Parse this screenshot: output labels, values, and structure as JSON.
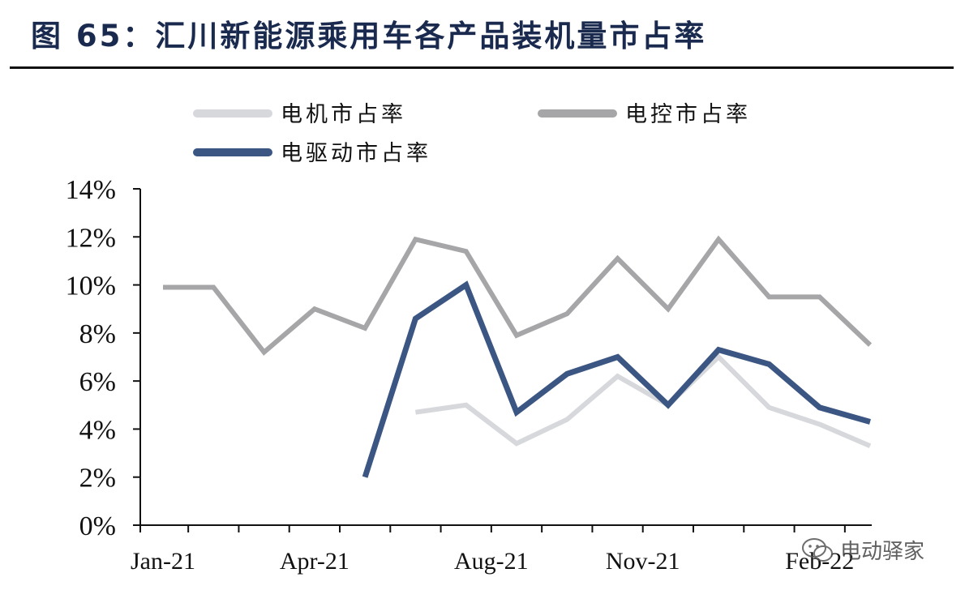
{
  "title": "图 65：汇川新能源乘用车各产品装机量市占率",
  "watermark": "电动驿家",
  "colors": {
    "motor": "#d6d8dc",
    "controller": "#a6a6a8",
    "drive": "#3b5682",
    "axis": "#111111",
    "title": "#1a2a4f"
  },
  "chart_data": {
    "type": "line",
    "title": "",
    "xlabel": "",
    "ylabel": "",
    "x": [
      "Jan-21",
      "Feb-21",
      "Mar-21",
      "Apr-21",
      "May-21",
      "Jun-21",
      "Jul-21",
      "Aug-21",
      "Sep-21",
      "Oct-21",
      "Nov-21",
      "Dec-21",
      "Jan-22",
      "Feb-22",
      "Mar-22"
    ],
    "x_tick_labels": [
      "Jan-21",
      "Apr-21",
      "Aug-21",
      "Nov-21",
      "Feb-22"
    ],
    "x_tick_label_index": [
      0,
      3,
      6.5,
      9.5,
      13
    ],
    "ylim": [
      0,
      14
    ],
    "y_ticks": [
      0,
      2,
      4,
      6,
      8,
      10,
      12,
      14
    ],
    "y_tick_labels": [
      "0%",
      "2%",
      "4%",
      "6%",
      "8%",
      "10%",
      "12%",
      "14%"
    ],
    "legend_position": "top",
    "grid": false,
    "series": [
      {
        "name": "电机市占率",
        "color_key": "motor",
        "values": [
          null,
          null,
          null,
          null,
          null,
          4.7,
          5.0,
          3.4,
          4.4,
          6.2,
          5.0,
          7.0,
          4.9,
          4.2,
          3.3
        ]
      },
      {
        "name": "电控市占率",
        "color_key": "controller",
        "values": [
          9.9,
          9.9,
          7.2,
          9.0,
          8.2,
          11.9,
          11.4,
          7.9,
          8.8,
          11.1,
          9.0,
          11.9,
          9.5,
          9.5,
          7.5
        ]
      },
      {
        "name": "电驱动市占率",
        "color_key": "drive",
        "values": [
          null,
          null,
          null,
          null,
          2.0,
          8.6,
          10.0,
          4.7,
          6.3,
          7.0,
          5.0,
          7.3,
          6.7,
          4.9,
          4.3
        ]
      }
    ]
  }
}
